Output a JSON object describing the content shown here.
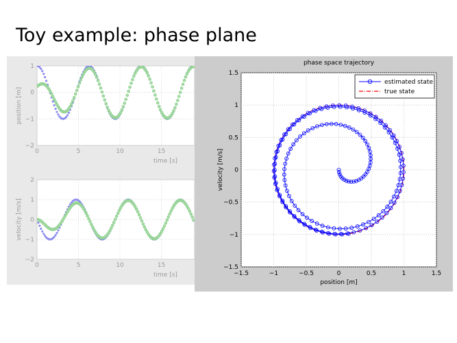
{
  "slide": {
    "title": "Toy example: phase plane"
  },
  "chart_data": [
    {
      "type": "line",
      "title": "",
      "xlabel": "time [s]",
      "ylabel": "position [m]",
      "xlim": [
        0,
        19
      ],
      "ylim": [
        -2,
        1
      ],
      "xticks": [
        "0",
        "5",
        "10",
        "15"
      ],
      "yticks": [
        "1",
        "0",
        "−1",
        "−2"
      ],
      "grid": true,
      "series": [
        {
          "color": "#8c8cf0",
          "style": "dots",
          "description_values": "true position: cos(t)"
        },
        {
          "color": "#7fc87f",
          "style": "dots-circles",
          "description_values": "estimated position converging from ~0.2 to cos(t)"
        }
      ]
    },
    {
      "type": "line",
      "title": "",
      "xlabel": "time [s]",
      "ylabel": "velocity [m/s]",
      "xlim": [
        0,
        19
      ],
      "ylim": [
        -2,
        2
      ],
      "xticks": [
        "0",
        "5",
        "10",
        "15"
      ],
      "yticks": [
        "2",
        "1",
        "0",
        "−1",
        "−2"
      ],
      "grid": true,
      "series": [
        {
          "color": "#8c8cf0",
          "style": "dots",
          "description_values": "true velocity: -sin(t)"
        },
        {
          "color": "#7fc87f",
          "style": "dots-circles",
          "description_values": "estimated velocity converging to -sin(t)"
        }
      ]
    },
    {
      "type": "line",
      "title": "phase space trajectory",
      "xlabel": "position [m]",
      "ylabel": "velocity [m/s]",
      "xlim": [
        -1.5,
        1.5
      ],
      "ylim": [
        -1.5,
        1.5
      ],
      "xticks": [
        "−1.5",
        "−1",
        "−0.5",
        "0",
        "0.5",
        "1",
        "1.5"
      ],
      "yticks": [
        "1.5",
        "1",
        "0.5",
        "0",
        "−0.5",
        "−1",
        "−1.5"
      ],
      "grid": true,
      "legend_position": "top-right",
      "series": [
        {
          "name": "estimated state",
          "color": "#0000ff",
          "style": "line-circles",
          "description_values": "spiral from (0,0) outward to the unit circle"
        },
        {
          "name": "true state",
          "color": "#ff0000",
          "style": "dash-dot",
          "description_values": "unit circle x=cos t, v=-sin t"
        }
      ]
    }
  ]
}
